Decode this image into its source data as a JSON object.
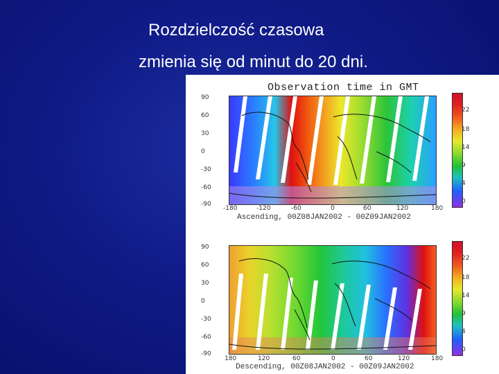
{
  "slide": {
    "title": "Rozdzielczość czasowa",
    "subtitle": "zmienia się od minut do 20 dni."
  },
  "figure": {
    "top_title": "Observation time in GMT",
    "top_caption": "Ascending,  00Z08JAN2002  -  00Z09JAN2002",
    "bottom_caption": "Descending,  00Z08JAN2002  -  00Z09JAN2002",
    "y_ticks": [
      "90",
      "60",
      "30",
      "0",
      "-30",
      "-60",
      "-90"
    ],
    "x_ticks_top": [
      "-180",
      "-120",
      "-60",
      "0",
      "60",
      "120",
      "180"
    ],
    "x_ticks_bottom": [
      "180",
      "120",
      "60",
      "0",
      "60",
      "120",
      "180"
    ],
    "colorbar_top": [
      "22",
      "18",
      "14",
      "9",
      "4",
      "0"
    ],
    "colorbar_bottom": [
      "22",
      "18",
      "14",
      "9",
      "4",
      "0"
    ]
  },
  "colors": {
    "slide_bg": "#0f1a86",
    "text": "#ffffff"
  }
}
